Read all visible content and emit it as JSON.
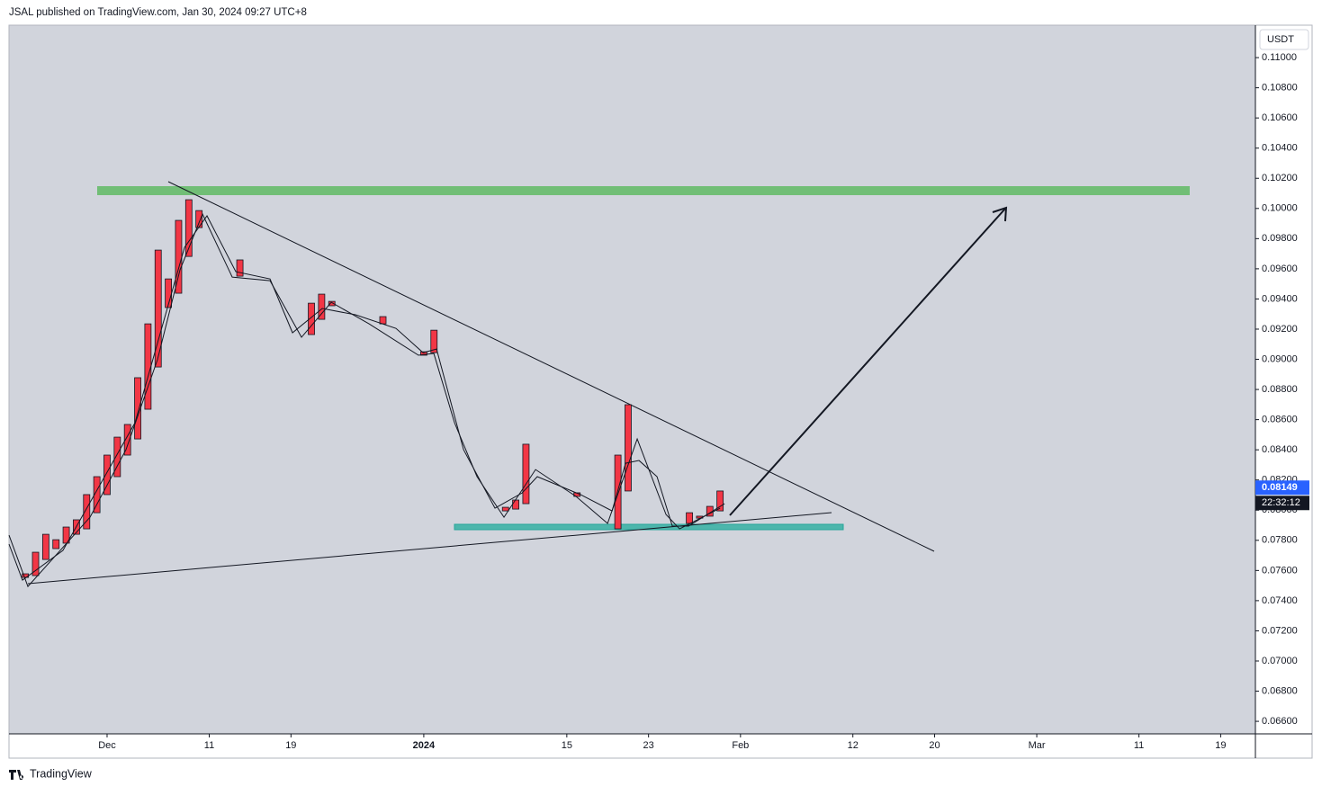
{
  "chart_data": {
    "type": "candlestick",
    "header": "JSAL published on TradingView.com, Jan 30, 2024 09:27 UTC+8",
    "brand": "TradingView",
    "currency": "USDT",
    "last_price": {
      "value": 0.08149,
      "label": "0.08149"
    },
    "countdown": "22:32:12",
    "ylim": [
      0.06517,
      0.11215
    ],
    "xlim": [
      -9.6,
      112.4
    ],
    "yticks": [
      {
        "value": 0.11,
        "label": "0.11000"
      },
      {
        "value": 0.108,
        "label": "0.10800"
      },
      {
        "value": 0.106,
        "label": "0.10600"
      },
      {
        "value": 0.104,
        "label": "0.10400"
      },
      {
        "value": 0.102,
        "label": "0.10200"
      },
      {
        "value": 0.1,
        "label": "0.10000"
      },
      {
        "value": 0.098,
        "label": "0.09800"
      },
      {
        "value": 0.096,
        "label": "0.09600"
      },
      {
        "value": 0.094,
        "label": "0.09400"
      },
      {
        "value": 0.092,
        "label": "0.09200"
      },
      {
        "value": 0.09,
        "label": "0.09000"
      },
      {
        "value": 0.088,
        "label": "0.08800"
      },
      {
        "value": 0.086,
        "label": "0.08600"
      },
      {
        "value": 0.084,
        "label": "0.08400"
      },
      {
        "value": 0.082,
        "label": "0.08200"
      },
      {
        "value": 0.08,
        "label": "0.08000"
      },
      {
        "value": 0.078,
        "label": "0.07800"
      },
      {
        "value": 0.076,
        "label": "0.07600"
      },
      {
        "value": 0.074,
        "label": "0.07400"
      },
      {
        "value": 0.072,
        "label": "0.07200"
      },
      {
        "value": 0.07,
        "label": "0.07000"
      },
      {
        "value": 0.068,
        "label": "0.06800"
      },
      {
        "value": 0.066,
        "label": "0.06600"
      }
    ],
    "xticks": [
      {
        "value": 0,
        "label": "Dec"
      },
      {
        "value": 10,
        "label": "11"
      },
      {
        "value": 18,
        "label": "19"
      },
      {
        "value": 31,
        "label": "2024"
      },
      {
        "value": 45,
        "label": "15"
      },
      {
        "value": 53,
        "label": "23"
      },
      {
        "value": 62,
        "label": "Feb"
      },
      {
        "value": 73,
        "label": "12"
      },
      {
        "value": 81,
        "label": "20"
      },
      {
        "value": 91,
        "label": "Mar"
      },
      {
        "value": 101,
        "label": "11"
      },
      {
        "value": 109,
        "label": "19"
      }
    ],
    "candles": {
      "color": "#f23645",
      "x": [
        -8,
        -7,
        -6,
        -5,
        -4,
        -3,
        -2,
        -1,
        0,
        1,
        2,
        3,
        4,
        5,
        6,
        7,
        8,
        9,
        13,
        20,
        21,
        22,
        27,
        31,
        32,
        39,
        40,
        41,
        46,
        50,
        51,
        57,
        58,
        59,
        60
      ],
      "open": [
        0.07554,
        0.07566,
        0.07673,
        0.07745,
        0.07781,
        0.0784,
        0.07876,
        0.07983,
        0.08103,
        0.08222,
        0.08365,
        0.08472,
        0.08669,
        0.08949,
        0.09343,
        0.09438,
        0.09682,
        0.09986,
        0.09659,
        0.09372,
        0.09265,
        0.09384,
        0.09235,
        0.09027,
        0.09044,
        0.08019,
        0.08007,
        0.08043,
        0.08091,
        0.07876,
        0.08127,
        0.07912,
        0.07947,
        0.0796,
        0.07995
      ],
      "close": [
        0.07578,
        0.07721,
        0.0784,
        0.07804,
        0.07888,
        0.07936,
        0.08103,
        0.08222,
        0.08365,
        0.08484,
        0.08568,
        0.08878,
        0.09235,
        0.09724,
        0.09533,
        0.09921,
        0.10058,
        0.09873,
        0.09551,
        0.09164,
        0.09432,
        0.09355,
        0.09283,
        0.0905,
        0.09193,
        0.07995,
        0.08067,
        0.08437,
        0.08115,
        0.08365,
        0.08699,
        0.07983,
        0.0796,
        0.08025,
        0.08127
      ]
    },
    "lines": [
      {
        "color": "#131722",
        "x": [
          -9.6,
          -7.75,
          -1.67,
          1.85,
          4.93,
          7.14,
          9.34,
          12.25,
          15.95,
          19.03,
          21.94,
          25.64,
          30.48,
          31.98,
          34.01,
          36.21,
          38.85,
          41.94,
          45.9,
          48.99,
          51.89,
          54.71,
          56.04,
          60.0
        ],
        "values": [
          0.07834,
          0.07494,
          0.07953,
          0.08401,
          0.08997,
          0.09593,
          0.09963,
          0.09545,
          0.09521,
          0.09146,
          0.09378,
          0.09235,
          0.09027,
          0.09039,
          0.08579,
          0.08222,
          0.07953,
          0.08269,
          0.08091,
          0.07912,
          0.08472,
          0.07971,
          0.07876,
          0.08013
        ]
      },
      {
        "color": "#131722",
        "x": [
          -9.6,
          -8.28,
          -4.32,
          2.73,
          7.58,
          9.78,
          12.6,
          15.95,
          18.15,
          21.06,
          24.32,
          28.28,
          30.93,
          32.25,
          34.89,
          37.97,
          40.62,
          42.11,
          46.34,
          49.43,
          50.75,
          52.07,
          53.83,
          55.33,
          56.92,
          60.44
        ],
        "values": [
          0.07775,
          0.07536,
          0.07733,
          0.08579,
          0.09742,
          0.09951,
          0.09581,
          0.09533,
          0.09176,
          0.09337,
          0.09295,
          0.09205,
          0.09044,
          0.09068,
          0.08401,
          0.08013,
          0.08114,
          0.08222,
          0.08103,
          0.07995,
          0.08311,
          0.08329,
          0.08222,
          0.07894,
          0.07894,
          0.08043
        ]
      }
    ]
  }
}
